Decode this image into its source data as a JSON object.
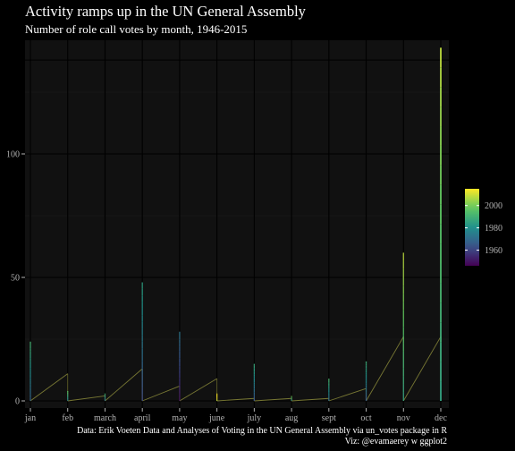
{
  "title": "Activity ramps up in the UN General Assembly",
  "subtitle": "Number of role call votes by month, 1946-2015",
  "caption_line1": "Data: Erik Voeten Data and Analyses of Voting in the UN General Assembly via un_votes package in R",
  "caption_line2": "Viz: @evamaerey w ggplot2",
  "colors": {
    "background": "#000000",
    "panel": "#111111",
    "grid_major": "#000000",
    "grid_minor": "#1c1c1c",
    "axis_text": "#b3b3b3",
    "viridis": [
      "#440154",
      "#3b528b",
      "#21918c",
      "#5ec962",
      "#fde725"
    ]
  },
  "chart_data": {
    "type": "line",
    "title": "Activity ramps up in the UN General Assembly",
    "subtitle": "Number of role call votes by month, 1946-2015",
    "xlabel": "",
    "ylabel": "",
    "categories": [
      "jan",
      "feb",
      "march",
      "april",
      "may",
      "june",
      "july",
      "aug",
      "sept",
      "oct",
      "nov",
      "dec"
    ],
    "ylim": [
      0,
      145
    ],
    "yticks": [
      0,
      50,
      100
    ],
    "grid": true,
    "legend": {
      "placement": "right",
      "type": "colorbar",
      "range": [
        1946,
        2015
      ],
      "ticks": [
        1960,
        1980,
        2000
      ]
    },
    "year_ramp_per_month": [
      {
        "month": "jan",
        "start_year": 1946,
        "end_year": 2015,
        "start_value": 0,
        "end_value": 0
      },
      {
        "month": "feb",
        "start_year": 1946,
        "end_year": 2015,
        "start_value": 0,
        "end_value": 11
      },
      {
        "month": "march",
        "start_year": 1946,
        "end_year": 2015,
        "start_value": 0,
        "end_value": 2
      },
      {
        "month": "april",
        "start_year": 1946,
        "end_year": 2015,
        "start_value": 0,
        "end_value": 13
      },
      {
        "month": "may",
        "start_year": 1946,
        "end_year": 2015,
        "start_value": 0,
        "end_value": 6
      },
      {
        "month": "june",
        "start_year": 1946,
        "end_year": 2015,
        "start_value": 0,
        "end_value": 9
      },
      {
        "month": "july",
        "start_year": 1946,
        "end_year": 2015,
        "start_value": 0,
        "end_value": 1
      },
      {
        "month": "aug",
        "start_year": 1946,
        "end_year": 2015,
        "start_value": 0,
        "end_value": 1
      },
      {
        "month": "sept",
        "start_year": 1946,
        "end_year": 2015,
        "start_value": 0,
        "end_value": 1
      },
      {
        "month": "oct",
        "start_year": 1946,
        "end_year": 2015,
        "start_value": 0,
        "end_value": 5
      },
      {
        "month": "nov",
        "start_year": 1946,
        "end_year": 2015,
        "start_value": 0,
        "end_value": 26
      },
      {
        "month": "dec",
        "start_year": 1946,
        "end_year": 2015,
        "start_value": 0,
        "end_value": 26
      }
    ],
    "vote_spikes": [
      {
        "month": "jan",
        "value": 24,
        "year": 1968
      },
      {
        "month": "feb",
        "value": 4,
        "year": 1975
      },
      {
        "month": "march",
        "value": 3,
        "year": 1970
      },
      {
        "month": "april",
        "value": 48,
        "year": 1962
      },
      {
        "month": "may",
        "value": 28,
        "year": 1950
      },
      {
        "month": "june",
        "value": 3,
        "year": 2008
      },
      {
        "month": "july",
        "value": 15,
        "year": 1965
      },
      {
        "month": "aug",
        "value": 2,
        "year": 1980
      },
      {
        "month": "sept",
        "value": 9,
        "year": 1970
      },
      {
        "month": "oct",
        "value": 16,
        "year": 1966
      },
      {
        "month": "nov",
        "value": 60,
        "year": 1985
      },
      {
        "month": "dec",
        "value": 143,
        "year": 1985
      }
    ]
  }
}
